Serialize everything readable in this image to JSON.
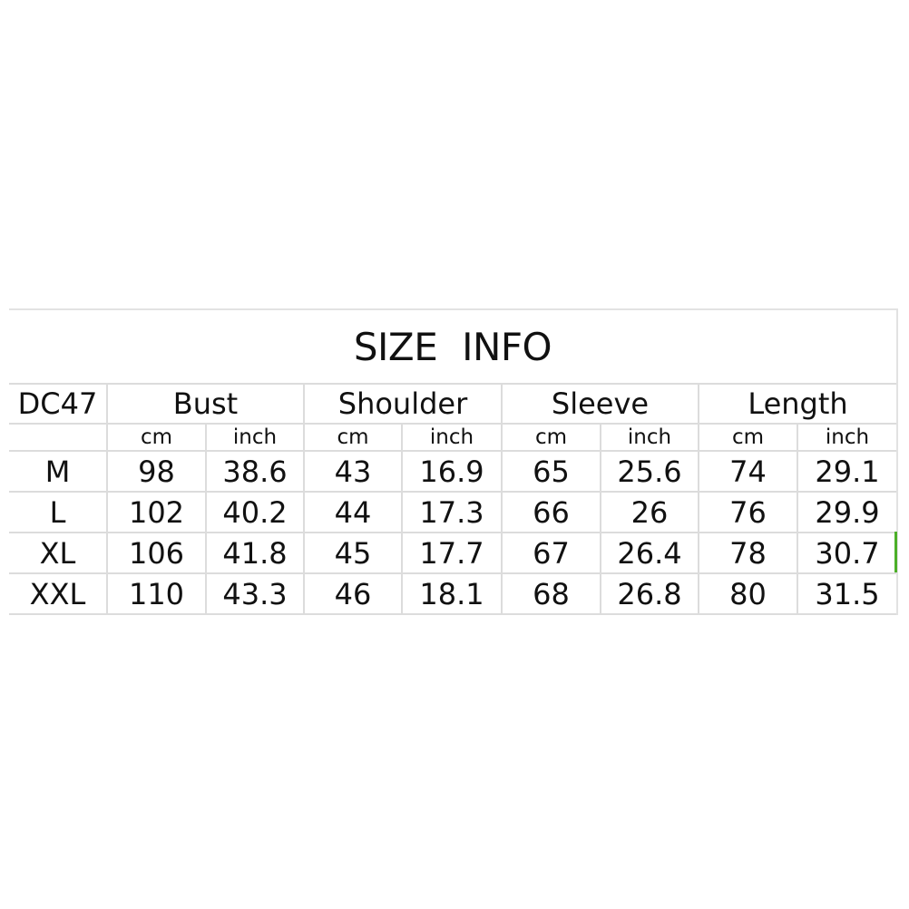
{
  "title": "SIZE  INFO",
  "model": "DC47",
  "measures": [
    "Bust",
    "Shoulder",
    "Sleeve",
    "Length"
  ],
  "units": [
    "cm",
    "inch",
    "cm",
    "inch",
    "cm",
    "inch",
    "cm",
    "inch"
  ],
  "rows": [
    {
      "size": "M",
      "values": [
        "98",
        "38.6",
        "43",
        "16.9",
        "65",
        "25.6",
        "74",
        "29.1"
      ]
    },
    {
      "size": "L",
      "values": [
        "102",
        "40.2",
        "44",
        "17.3",
        "66",
        "26",
        "76",
        "29.9"
      ]
    },
    {
      "size": "XL",
      "values": [
        "106",
        "41.8",
        "45",
        "17.7",
        "67",
        "26.4",
        "78",
        "30.7"
      ]
    },
    {
      "size": "XXL",
      "values": [
        "110",
        "43.3",
        "46",
        "18.1",
        "68",
        "26.8",
        "80",
        "31.5"
      ]
    }
  ],
  "colors": {
    "grid": "#dcdcdc",
    "selection_marker": "#4caf28"
  }
}
